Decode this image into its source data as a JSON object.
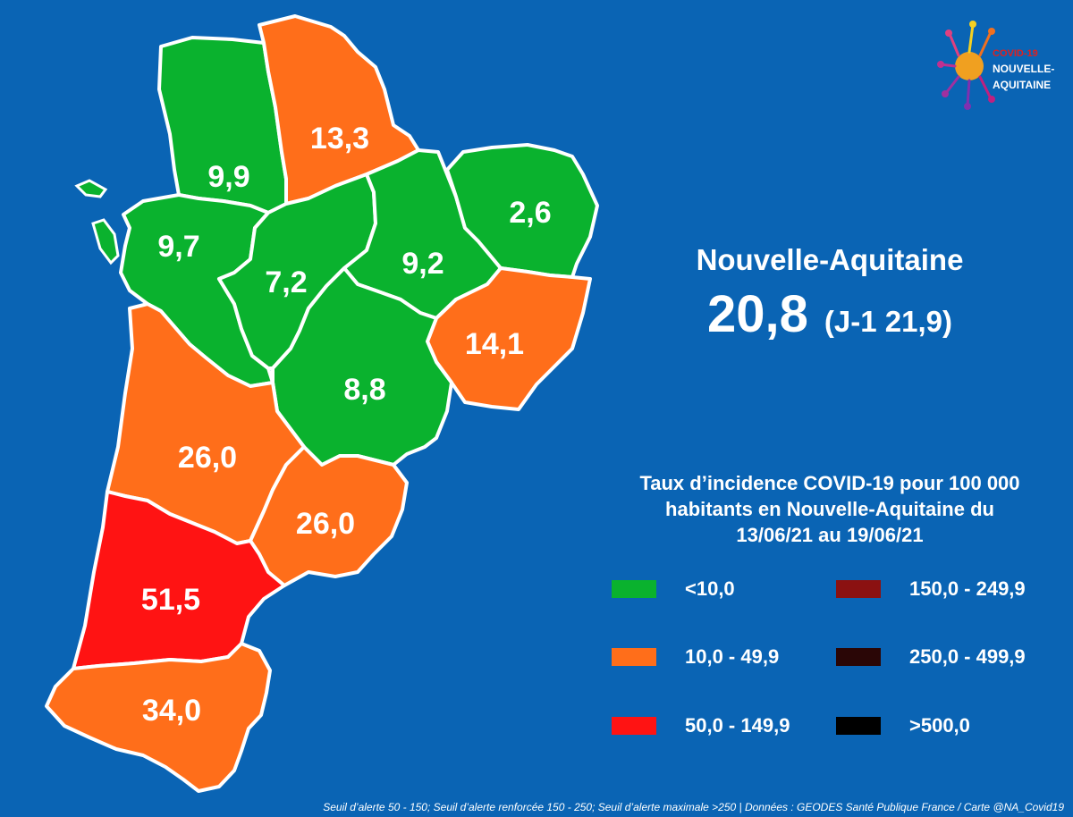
{
  "logo": {
    "line1": "COVID-19",
    "line2": "NOUVELLE-",
    "line3": "AQUITAINE"
  },
  "summary": {
    "region": "Nouvelle-Aquitaine",
    "value": "20,8",
    "previous": "(J-1 21,9)"
  },
  "legend": {
    "title_line1": "Taux d’incidence COVID-19 pour 100 000",
    "title_line2": "habitants en Nouvelle-Aquitaine du",
    "title_line3": "13/06/21 au 19/06/21",
    "items": [
      {
        "label": "<10,0",
        "color": "#0ab22e"
      },
      {
        "label": "10,0 - 49,9",
        "color": "#ff6e1a"
      },
      {
        "label": "50,0 - 149,9",
        "color": "#ff1313"
      },
      {
        "label": "150,0 - 249,9",
        "color": "#8b1111"
      },
      {
        "label": "250,0 - 499,9",
        "color": "#2a0606"
      },
      {
        "label": ">500,0",
        "color": "#000000"
      }
    ]
  },
  "departments": [
    {
      "value": "9,9",
      "color": "#0ab22e"
    },
    {
      "value": "13,3",
      "color": "#ff6e1a"
    },
    {
      "value": "9,7",
      "color": "#0ab22e"
    },
    {
      "value": "7,2",
      "color": "#0ab22e"
    },
    {
      "value": "9,2",
      "color": "#0ab22e"
    },
    {
      "value": "2,6",
      "color": "#0ab22e"
    },
    {
      "value": "14,1",
      "color": "#ff6e1a"
    },
    {
      "value": "8,8",
      "color": "#0ab22e"
    },
    {
      "value": "26,0",
      "color": "#ff6e1a"
    },
    {
      "value": "26,0",
      "color": "#ff6e1a"
    },
    {
      "value": "51,5",
      "color": "#ff1313"
    },
    {
      "value": "34,0",
      "color": "#ff6e1a"
    }
  ],
  "footer": "Seuil d’alerte 50 - 150; Seuil d’alerte renforcée 150 - 250; Seuil d’alerte maximale >250 | Données : GEODES Santé Publique France / Carte @NA_Covid19"
}
